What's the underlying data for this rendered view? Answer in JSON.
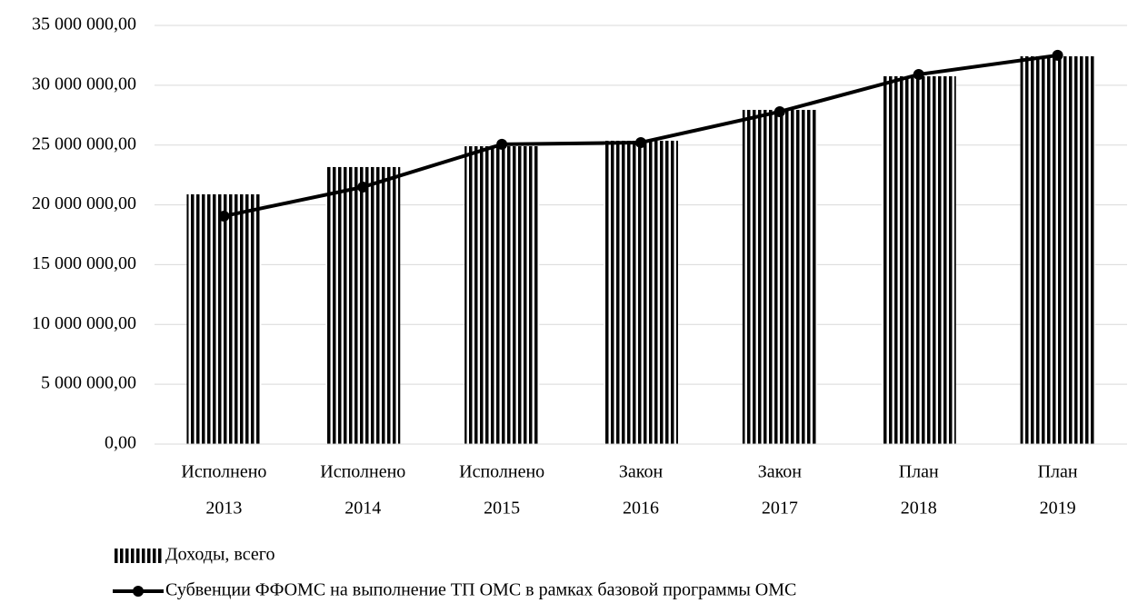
{
  "chart_data": {
    "type": "bar",
    "categories": [
      [
        "Исполнено",
        "2013"
      ],
      [
        "Исполнено",
        "2014"
      ],
      [
        "Исполнено",
        "2015"
      ],
      [
        "Закон",
        "2016"
      ],
      [
        "Закон",
        "2017"
      ],
      [
        "План",
        "2018"
      ],
      [
        "План",
        "2019"
      ]
    ],
    "series": [
      {
        "name": "Доходы, всего",
        "type": "bar",
        "color": "#000000",
        "values": [
          20880000,
          23160000,
          24900000,
          25360000,
          27940000,
          30750000,
          32420000
        ]
      },
      {
        "name": "Субвенции ФФОМС на выполнение ТП ОМС в рамках базовой программы ОМС",
        "type": "line",
        "color": "#000000",
        "values": [
          19060000,
          21490000,
          25060000,
          25210000,
          27790000,
          30900000,
          32500000
        ]
      }
    ],
    "ylim": [
      0,
      35000000
    ],
    "yticks": [
      {
        "value": 0,
        "label": "0,00"
      },
      {
        "value": 5000000,
        "label": "5 000 000,00"
      },
      {
        "value": 10000000,
        "label": "10 000 000,00"
      },
      {
        "value": 15000000,
        "label": "15 000 000,00"
      },
      {
        "value": 20000000,
        "label": "20 000 000,00"
      },
      {
        "value": 25000000,
        "label": "25 000 000,00"
      },
      {
        "value": 30000000,
        "label": "30 000 000,00"
      },
      {
        "value": 35000000,
        "label": "35 000 000,00"
      }
    ],
    "grid": true
  }
}
